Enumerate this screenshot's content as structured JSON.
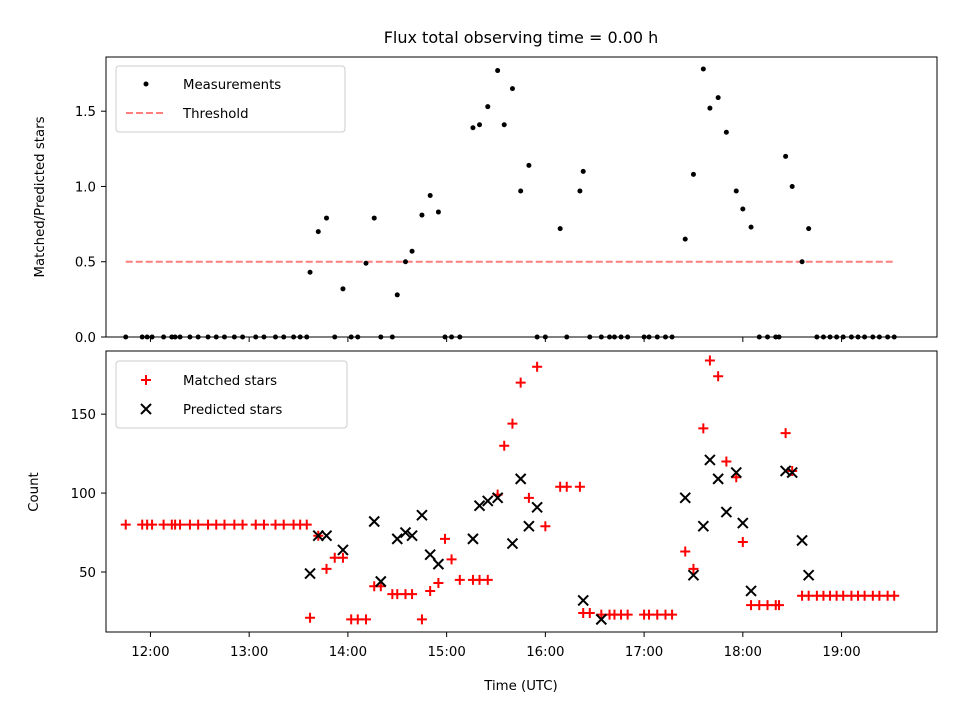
{
  "chart_data": [
    {
      "type": "scatter",
      "title": "Flux total observing time = 0.00 h",
      "xlabel": "",
      "ylabel": "Matched/Predicted stars",
      "xlim": [
        "11:33",
        "19:58"
      ],
      "ylim": [
        0,
        1.86
      ],
      "yticks": [
        0.0,
        0.5,
        1.0,
        1.5
      ],
      "grid": false,
      "legend_position": "top-left",
      "series": [
        {
          "name": "Measurements",
          "kind": "scatter",
          "color": "#000000",
          "points": [
            [
              "11:45",
              0
            ],
            [
              "11:55",
              0
            ],
            [
              "11:58",
              0
            ],
            [
              "12:01",
              0
            ],
            [
              "12:08",
              0
            ],
            [
              "12:13",
              0
            ],
            [
              "12:15",
              0
            ],
            [
              "12:18",
              0
            ],
            [
              "12:24",
              0
            ],
            [
              "12:29",
              0
            ],
            [
              "12:35",
              0
            ],
            [
              "12:40",
              0
            ],
            [
              "12:45",
              0
            ],
            [
              "12:51",
              0
            ],
            [
              "12:56",
              0
            ],
            [
              "13:04",
              0
            ],
            [
              "13:09",
              0
            ],
            [
              "13:16",
              0
            ],
            [
              "13:21",
              0
            ],
            [
              "13:27",
              0
            ],
            [
              "13:31",
              0
            ],
            [
              "13:35",
              0
            ],
            [
              "13:37",
              0.43
            ],
            [
              "13:42",
              0.7
            ],
            [
              "13:47",
              0.79
            ],
            [
              "13:52",
              0
            ],
            [
              "13:57",
              0.32
            ],
            [
              "14:02",
              0
            ],
            [
              "14:06",
              0
            ],
            [
              "14:11",
              0.49
            ],
            [
              "14:16",
              0.79
            ],
            [
              "14:20",
              0
            ],
            [
              "14:27",
              0
            ],
            [
              "14:30",
              0.28
            ],
            [
              "14:35",
              0.5
            ],
            [
              "14:39",
              0.57
            ],
            [
              "14:45",
              0.81
            ],
            [
              "14:50",
              0.94
            ],
            [
              "14:55",
              0.83
            ],
            [
              "14:59",
              0
            ],
            [
              "15:03",
              0
            ],
            [
              "15:08",
              0
            ],
            [
              "15:16",
              1.39
            ],
            [
              "15:20",
              1.41
            ],
            [
              "15:25",
              1.53
            ],
            [
              "15:31",
              1.77
            ],
            [
              "15:35",
              1.41
            ],
            [
              "15:40",
              1.65
            ],
            [
              "15:45",
              0.97
            ],
            [
              "15:50",
              1.14
            ],
            [
              "15:55",
              0
            ],
            [
              "16:00",
              0
            ],
            [
              "16:09",
              0.72
            ],
            [
              "16:13",
              0
            ],
            [
              "16:21",
              0.97
            ],
            [
              "16:23",
              1.1
            ],
            [
              "16:27",
              0
            ],
            [
              "16:34",
              0
            ],
            [
              "16:39",
              0
            ],
            [
              "16:42",
              0
            ],
            [
              "16:46",
              0
            ],
            [
              "16:50",
              0
            ],
            [
              "17:00",
              0
            ],
            [
              "17:03",
              0
            ],
            [
              "17:08",
              0
            ],
            [
              "17:13",
              0
            ],
            [
              "17:17",
              0
            ],
            [
              "17:25",
              0.65
            ],
            [
              "17:30",
              1.08
            ],
            [
              "17:36",
              1.78
            ],
            [
              "17:40",
              1.52
            ],
            [
              "17:45",
              1.59
            ],
            [
              "17:50",
              1.36
            ],
            [
              "17:56",
              0.97
            ],
            [
              "18:00",
              0.85
            ],
            [
              "18:05",
              0.73
            ],
            [
              "18:10",
              0
            ],
            [
              "18:15",
              0
            ],
            [
              "18:20",
              0
            ],
            [
              "18:22",
              0
            ],
            [
              "18:26",
              1.2
            ],
            [
              "18:30",
              1.0
            ],
            [
              "18:36",
              0.5
            ],
            [
              "18:40",
              0.72
            ],
            [
              "18:45",
              0
            ],
            [
              "18:49",
              0
            ],
            [
              "18:53",
              0
            ],
            [
              "18:57",
              0
            ],
            [
              "19:01",
              0
            ],
            [
              "19:06",
              0
            ],
            [
              "19:10",
              0
            ],
            [
              "19:14",
              0
            ],
            [
              "19:19",
              0
            ],
            [
              "19:23",
              0
            ],
            [
              "19:28",
              0
            ],
            [
              "19:32",
              0
            ]
          ]
        },
        {
          "name": "Threshold",
          "kind": "line",
          "style": "dashed",
          "color": "#ff7f7f",
          "points": [
            [
              "11:45",
              0.5
            ],
            [
              "19:32",
              0.5
            ]
          ]
        }
      ]
    },
    {
      "type": "scatter",
      "title": "",
      "xlabel": "Time (UTC)",
      "ylabel": "Count",
      "xlim": [
        "11:33",
        "19:58"
      ],
      "ylim": [
        12,
        190
      ],
      "xticks": [
        "12:00",
        "13:00",
        "14:00",
        "15:00",
        "16:00",
        "17:00",
        "18:00",
        "19:00"
      ],
      "yticks": [
        50,
        100,
        150
      ],
      "grid": false,
      "legend_position": "top-left",
      "series": [
        {
          "name": "Matched stars",
          "marker": "+",
          "color": "#ff0000",
          "points": [
            [
              "11:45",
              80
            ],
            [
              "11:55",
              80
            ],
            [
              "11:58",
              80
            ],
            [
              "12:01",
              80
            ],
            [
              "12:08",
              80
            ],
            [
              "12:13",
              80
            ],
            [
              "12:15",
              80
            ],
            [
              "12:18",
              80
            ],
            [
              "12:24",
              80
            ],
            [
              "12:29",
              80
            ],
            [
              "12:35",
              80
            ],
            [
              "12:40",
              80
            ],
            [
              "12:45",
              80
            ],
            [
              "12:51",
              80
            ],
            [
              "12:56",
              80
            ],
            [
              "13:04",
              80
            ],
            [
              "13:09",
              80
            ],
            [
              "13:16",
              80
            ],
            [
              "13:21",
              80
            ],
            [
              "13:27",
              80
            ],
            [
              "13:31",
              80
            ],
            [
              "13:35",
              80
            ],
            [
              "13:37",
              21
            ],
            [
              "13:42",
              73
            ],
            [
              "13:47",
              52
            ],
            [
              "13:52",
              59
            ],
            [
              "13:57",
              59
            ],
            [
              "14:02",
              20
            ],
            [
              "14:06",
              20
            ],
            [
              "14:11",
              20
            ],
            [
              "14:16",
              41
            ],
            [
              "14:20",
              41
            ],
            [
              "14:27",
              36
            ],
            [
              "14:30",
              36
            ],
            [
              "14:35",
              36
            ],
            [
              "14:39",
              36
            ],
            [
              "14:45",
              20
            ],
            [
              "14:50",
              38
            ],
            [
              "14:55",
              43
            ],
            [
              "14:59",
              71
            ],
            [
              "15:03",
              58
            ],
            [
              "15:08",
              45
            ],
            [
              "15:16",
              45
            ],
            [
              "15:20",
              45
            ],
            [
              "15:25",
              45
            ],
            [
              "15:31",
              99
            ],
            [
              "15:35",
              130
            ],
            [
              "15:40",
              144
            ],
            [
              "15:45",
              170
            ],
            [
              "15:50",
              97
            ],
            [
              "15:55",
              180
            ],
            [
              "16:00",
              79
            ],
            [
              "16:09",
              104
            ],
            [
              "16:13",
              104
            ],
            [
              "16:21",
              104
            ],
            [
              "16:23",
              24
            ],
            [
              "16:27",
              24
            ],
            [
              "16:34",
              23
            ],
            [
              "16:39",
              23
            ],
            [
              "16:42",
              23
            ],
            [
              "16:46",
              23
            ],
            [
              "16:50",
              23
            ],
            [
              "17:00",
              23
            ],
            [
              "17:03",
              23
            ],
            [
              "17:08",
              23
            ],
            [
              "17:13",
              23
            ],
            [
              "17:17",
              23
            ],
            [
              "17:25",
              63
            ],
            [
              "17:30",
              52
            ],
            [
              "17:36",
              141
            ],
            [
              "17:40",
              184
            ],
            [
              "17:45",
              174
            ],
            [
              "17:50",
              120
            ],
            [
              "17:56",
              110
            ],
            [
              "18:00",
              69
            ],
            [
              "18:05",
              29
            ],
            [
              "18:10",
              29
            ],
            [
              "18:15",
              29
            ],
            [
              "18:20",
              29
            ],
            [
              "18:22",
              29
            ],
            [
              "18:26",
              138
            ],
            [
              "18:30",
              114
            ],
            [
              "18:36",
              35
            ],
            [
              "18:40",
              35
            ],
            [
              "18:45",
              35
            ],
            [
              "18:49",
              35
            ],
            [
              "18:53",
              35
            ],
            [
              "18:57",
              35
            ],
            [
              "19:01",
              35
            ],
            [
              "19:06",
              35
            ],
            [
              "19:10",
              35
            ],
            [
              "19:14",
              35
            ],
            [
              "19:19",
              35
            ],
            [
              "19:23",
              35
            ],
            [
              "19:28",
              35
            ],
            [
              "19:32",
              35
            ]
          ]
        },
        {
          "name": "Predicted stars",
          "marker": "x",
          "color": "#000000",
          "points": [
            [
              "13:37",
              49
            ],
            [
              "13:42",
              73
            ],
            [
              "13:47",
              73
            ],
            [
              "13:57",
              64
            ],
            [
              "14:16",
              82
            ],
            [
              "14:20",
              44
            ],
            [
              "14:30",
              71
            ],
            [
              "14:35",
              75
            ],
            [
              "14:39",
              73
            ],
            [
              "14:45",
              86
            ],
            [
              "14:50",
              61
            ],
            [
              "14:55",
              55
            ],
            [
              "15:16",
              71
            ],
            [
              "15:20",
              92
            ],
            [
              "15:25",
              95
            ],
            [
              "15:31",
              97
            ],
            [
              "15:40",
              68
            ],
            [
              "15:45",
              109
            ],
            [
              "15:50",
              79
            ],
            [
              "15:55",
              91
            ],
            [
              "16:23",
              32
            ],
            [
              "16:34",
              20
            ],
            [
              "17:25",
              97
            ],
            [
              "17:30",
              48
            ],
            [
              "17:36",
              79
            ],
            [
              "17:40",
              121
            ],
            [
              "17:45",
              109
            ],
            [
              "17:50",
              88
            ],
            [
              "17:56",
              113
            ],
            [
              "18:00",
              81
            ],
            [
              "18:05",
              38
            ],
            [
              "18:26",
              114
            ],
            [
              "18:30",
              113
            ],
            [
              "18:36",
              70
            ],
            [
              "18:40",
              48
            ]
          ]
        }
      ]
    }
  ]
}
